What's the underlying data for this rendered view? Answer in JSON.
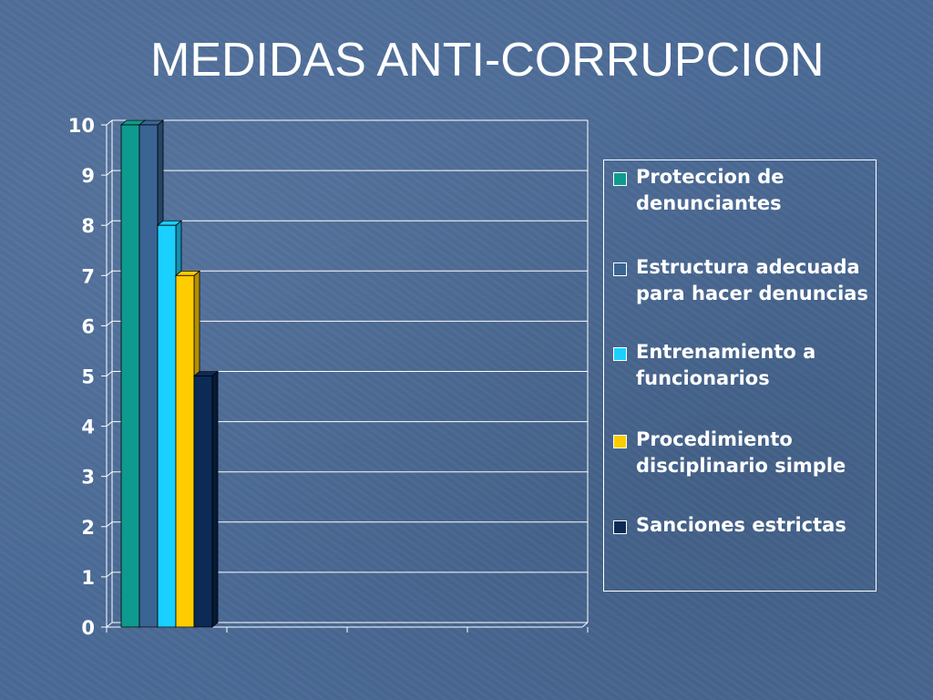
{
  "slide": {
    "title": "MEDIDAS ANTI-CORRUPCION"
  },
  "colors": {
    "background": "#4a6a96",
    "grid": "#ffffff",
    "text": "#ffffff"
  },
  "chart_data": {
    "type": "bar",
    "style": "3d-clustered",
    "title": "",
    "xlabel": "",
    "ylabel": "",
    "ylim": [
      0,
      10
    ],
    "yticks": [
      "0",
      "1",
      "2",
      "3",
      "4",
      "5",
      "6",
      "7",
      "8",
      "9",
      "10"
    ],
    "grid": true,
    "legend_position": "right",
    "categories": [
      ""
    ],
    "series": [
      {
        "name": "Proteccion de denunciantes",
        "values": [
          10
        ],
        "color": "#0f9a8f",
        "dark": "#0a6b63"
      },
      {
        "name": "Estructura adecuada para hacer denuncias",
        "values": [
          10
        ],
        "color": "#3a6494",
        "dark": "#264566"
      },
      {
        "name": "Entrenamiento a funcionarios",
        "values": [
          8
        ],
        "color": "#1ad0ff",
        "dark": "#1490b3"
      },
      {
        "name": "Procedimiento disciplinario simple",
        "values": [
          7
        ],
        "color": "#ffcc00",
        "dark": "#b38f00"
      },
      {
        "name": "Sanciones estrictas",
        "values": [
          5
        ],
        "color": "#0b2a55",
        "dark": "#061a36"
      }
    ]
  }
}
